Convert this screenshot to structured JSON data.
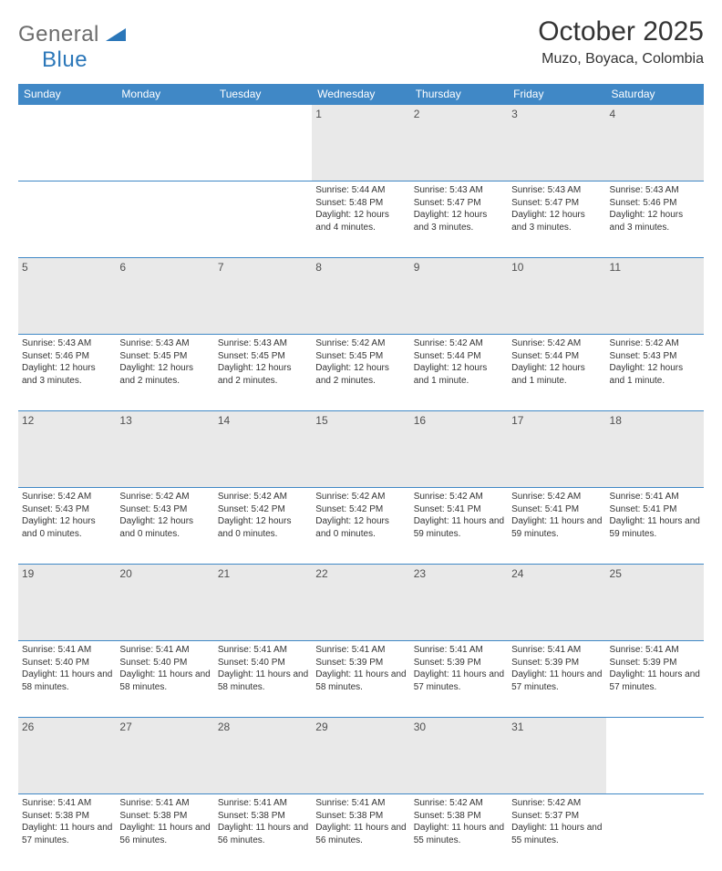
{
  "logo": {
    "part1": "General",
    "part2": "Blue"
  },
  "colors": {
    "header_bg": "#4088c6",
    "header_fg": "#ffffff",
    "daynum_bg": "#e9e9e9",
    "border": "#4088c6",
    "logo_gray": "#6c6c6c",
    "logo_blue": "#2b77b9"
  },
  "title": "October 2025",
  "location": "Muzo, Boyaca, Colombia",
  "day_headers": [
    "Sunday",
    "Monday",
    "Tuesday",
    "Wednesday",
    "Thursday",
    "Friday",
    "Saturday"
  ],
  "weeks": [
    [
      null,
      null,
      null,
      {
        "n": "1",
        "sunrise": "5:44 AM",
        "sunset": "5:48 PM",
        "daylight": "12 hours and 4 minutes."
      },
      {
        "n": "2",
        "sunrise": "5:43 AM",
        "sunset": "5:47 PM",
        "daylight": "12 hours and 3 minutes."
      },
      {
        "n": "3",
        "sunrise": "5:43 AM",
        "sunset": "5:47 PM",
        "daylight": "12 hours and 3 minutes."
      },
      {
        "n": "4",
        "sunrise": "5:43 AM",
        "sunset": "5:46 PM",
        "daylight": "12 hours and 3 minutes."
      }
    ],
    [
      {
        "n": "5",
        "sunrise": "5:43 AM",
        "sunset": "5:46 PM",
        "daylight": "12 hours and 3 minutes."
      },
      {
        "n": "6",
        "sunrise": "5:43 AM",
        "sunset": "5:45 PM",
        "daylight": "12 hours and 2 minutes."
      },
      {
        "n": "7",
        "sunrise": "5:43 AM",
        "sunset": "5:45 PM",
        "daylight": "12 hours and 2 minutes."
      },
      {
        "n": "8",
        "sunrise": "5:42 AM",
        "sunset": "5:45 PM",
        "daylight": "12 hours and 2 minutes."
      },
      {
        "n": "9",
        "sunrise": "5:42 AM",
        "sunset": "5:44 PM",
        "daylight": "12 hours and 1 minute."
      },
      {
        "n": "10",
        "sunrise": "5:42 AM",
        "sunset": "5:44 PM",
        "daylight": "12 hours and 1 minute."
      },
      {
        "n": "11",
        "sunrise": "5:42 AM",
        "sunset": "5:43 PM",
        "daylight": "12 hours and 1 minute."
      }
    ],
    [
      {
        "n": "12",
        "sunrise": "5:42 AM",
        "sunset": "5:43 PM",
        "daylight": "12 hours and 0 minutes."
      },
      {
        "n": "13",
        "sunrise": "5:42 AM",
        "sunset": "5:43 PM",
        "daylight": "12 hours and 0 minutes."
      },
      {
        "n": "14",
        "sunrise": "5:42 AM",
        "sunset": "5:42 PM",
        "daylight": "12 hours and 0 minutes."
      },
      {
        "n": "15",
        "sunrise": "5:42 AM",
        "sunset": "5:42 PM",
        "daylight": "12 hours and 0 minutes."
      },
      {
        "n": "16",
        "sunrise": "5:42 AM",
        "sunset": "5:41 PM",
        "daylight": "11 hours and 59 minutes."
      },
      {
        "n": "17",
        "sunrise": "5:42 AM",
        "sunset": "5:41 PM",
        "daylight": "11 hours and 59 minutes."
      },
      {
        "n": "18",
        "sunrise": "5:41 AM",
        "sunset": "5:41 PM",
        "daylight": "11 hours and 59 minutes."
      }
    ],
    [
      {
        "n": "19",
        "sunrise": "5:41 AM",
        "sunset": "5:40 PM",
        "daylight": "11 hours and 58 minutes."
      },
      {
        "n": "20",
        "sunrise": "5:41 AM",
        "sunset": "5:40 PM",
        "daylight": "11 hours and 58 minutes."
      },
      {
        "n": "21",
        "sunrise": "5:41 AM",
        "sunset": "5:40 PM",
        "daylight": "11 hours and 58 minutes."
      },
      {
        "n": "22",
        "sunrise": "5:41 AM",
        "sunset": "5:39 PM",
        "daylight": "11 hours and 58 minutes."
      },
      {
        "n": "23",
        "sunrise": "5:41 AM",
        "sunset": "5:39 PM",
        "daylight": "11 hours and 57 minutes."
      },
      {
        "n": "24",
        "sunrise": "5:41 AM",
        "sunset": "5:39 PM",
        "daylight": "11 hours and 57 minutes."
      },
      {
        "n": "25",
        "sunrise": "5:41 AM",
        "sunset": "5:39 PM",
        "daylight": "11 hours and 57 minutes."
      }
    ],
    [
      {
        "n": "26",
        "sunrise": "5:41 AM",
        "sunset": "5:38 PM",
        "daylight": "11 hours and 57 minutes."
      },
      {
        "n": "27",
        "sunrise": "5:41 AM",
        "sunset": "5:38 PM",
        "daylight": "11 hours and 56 minutes."
      },
      {
        "n": "28",
        "sunrise": "5:41 AM",
        "sunset": "5:38 PM",
        "daylight": "11 hours and 56 minutes."
      },
      {
        "n": "29",
        "sunrise": "5:41 AM",
        "sunset": "5:38 PM",
        "daylight": "11 hours and 56 minutes."
      },
      {
        "n": "30",
        "sunrise": "5:42 AM",
        "sunset": "5:38 PM",
        "daylight": "11 hours and 55 minutes."
      },
      {
        "n": "31",
        "sunrise": "5:42 AM",
        "sunset": "5:37 PM",
        "daylight": "11 hours and 55 minutes."
      },
      null
    ]
  ],
  "labels": {
    "sunrise": "Sunrise: ",
    "sunset": "Sunset: ",
    "daylight": "Daylight: "
  }
}
